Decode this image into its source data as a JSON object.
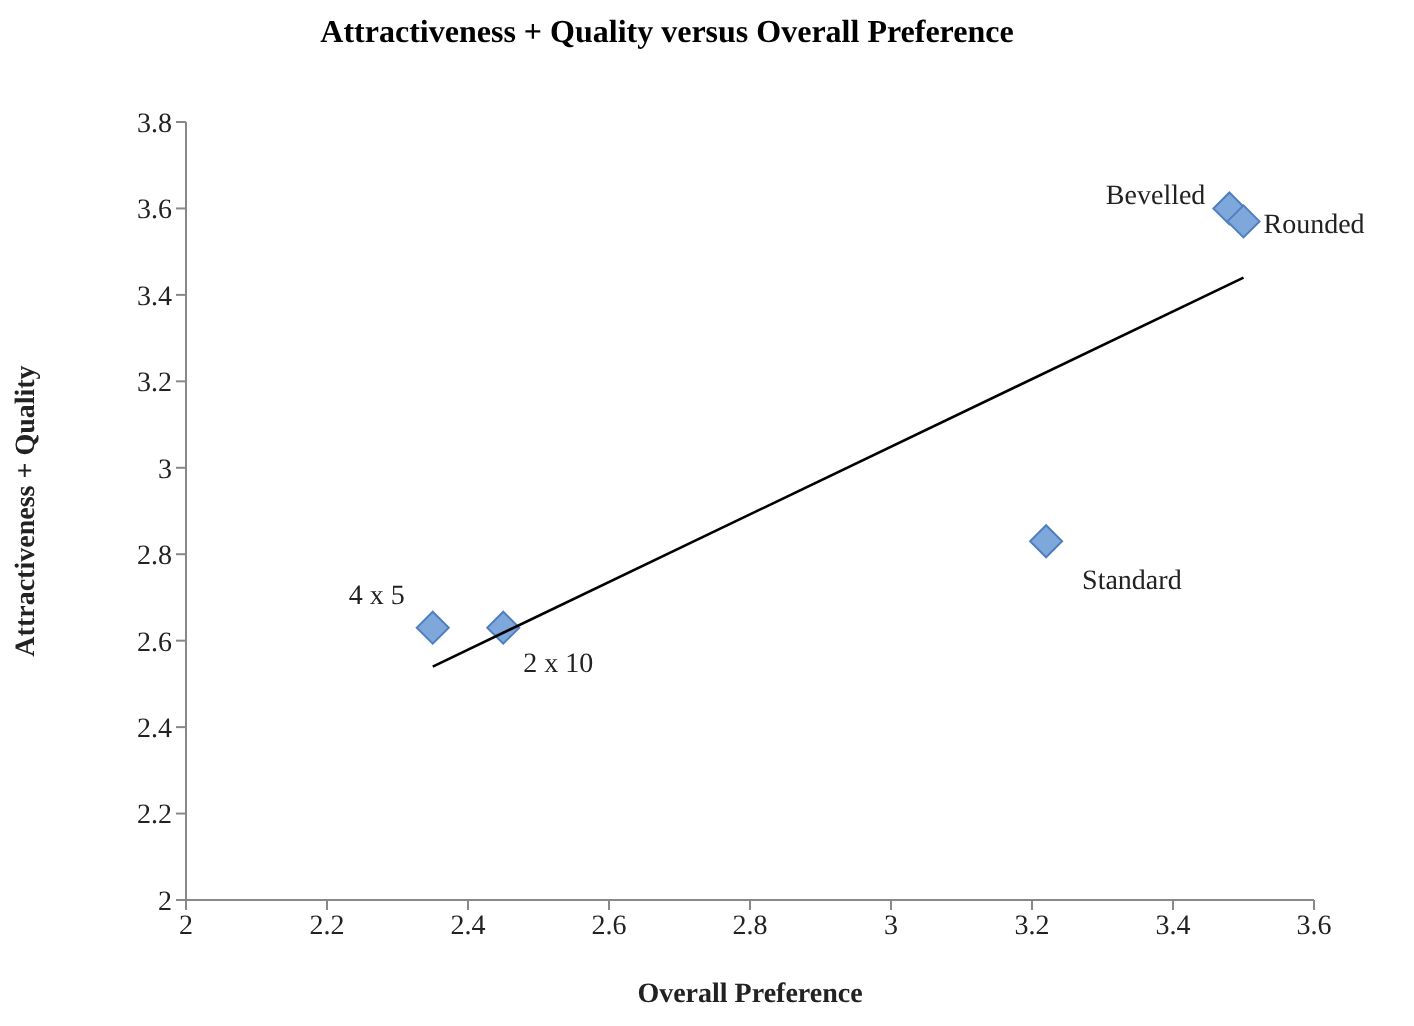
{
  "chart_data": {
    "type": "scatter",
    "title": "Attractiveness + Quality versus Overall Preference",
    "xlabel": "Overall Preference",
    "ylabel": "Attractiveness + Quality",
    "series": [
      {
        "color": "#7ea8dc",
        "marker": "diamond",
        "x": [
          2.35,
          2.45,
          3.22,
          3.48,
          3.5
        ],
        "values": [
          2.63,
          2.63,
          2.83,
          3.6,
          3.57
        ]
      },
      {
        "type": "line",
        "color": "#000000",
        "marker": "none",
        "x": [
          2.35,
          3.5
        ],
        "values": [
          2.54,
          3.44
        ]
      }
    ],
    "annotations": [
      {
        "text": "4 x 5",
        "x": 2.35,
        "y": 2.63
      },
      {
        "text": "2 x 10",
        "x": 2.45,
        "y": 2.63
      },
      {
        "text": "Standard",
        "x": 3.22,
        "y": 2.83
      },
      {
        "text": "Bevelled",
        "x": 3.48,
        "y": 3.6
      },
      {
        "text": "Rounded",
        "x": 3.5,
        "y": 3.57
      }
    ],
    "xlim": [
      2,
      3.6
    ],
    "xticks": [
      2,
      2.2,
      2.4,
      2.6,
      2.8,
      3,
      3.2,
      3.4,
      3.6
    ],
    "ylim": [
      2,
      3.8
    ],
    "yticks": [
      2,
      2.2,
      2.4,
      2.6,
      2.8,
      3,
      3.2,
      3.4,
      3.6,
      3.8
    ],
    "grid": false,
    "legend": false
  }
}
